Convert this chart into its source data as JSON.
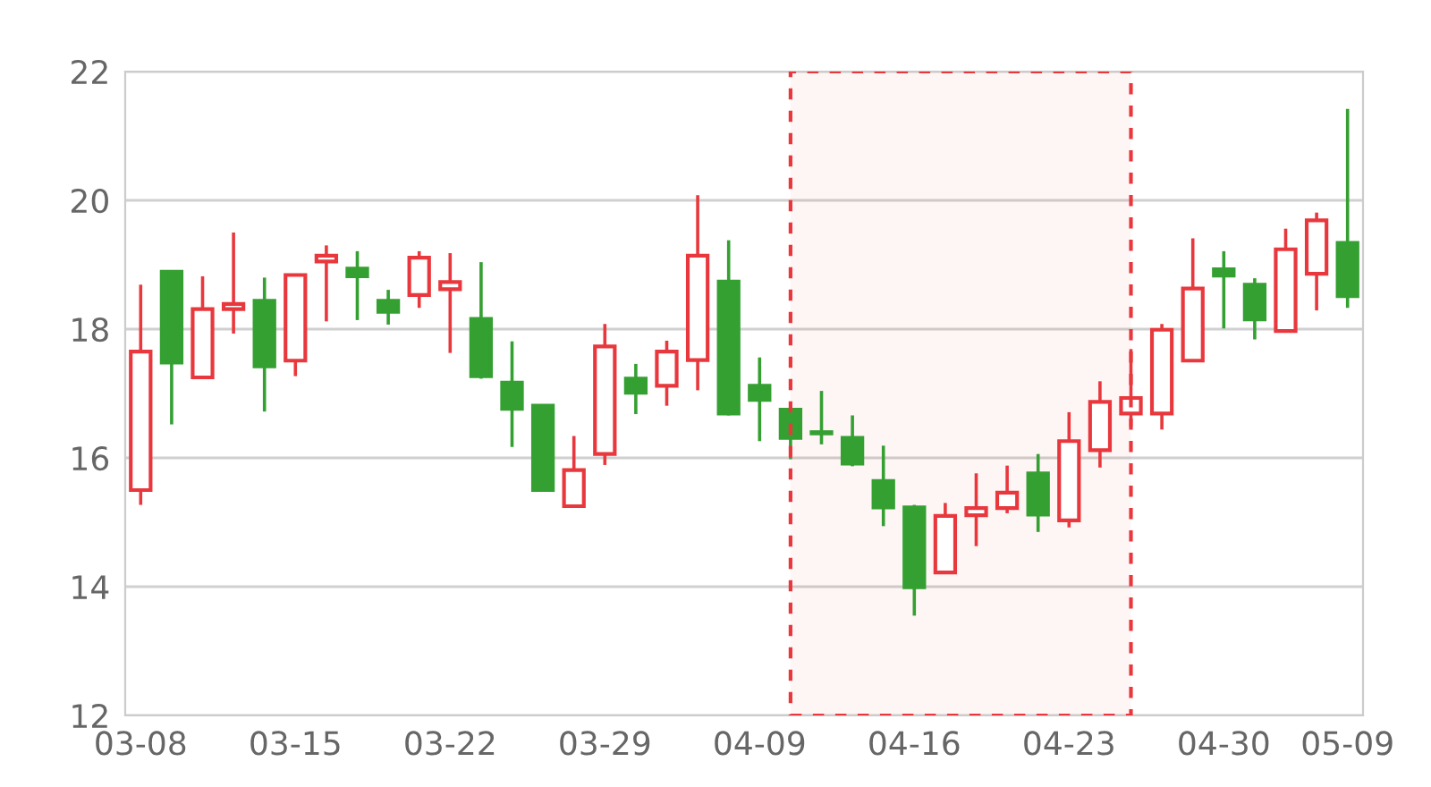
{
  "chart_data": {
    "type": "candlestick",
    "categories": [
      "03-08",
      null,
      null,
      null,
      null,
      "03-15",
      null,
      null,
      null,
      null,
      "03-22",
      null,
      null,
      null,
      null,
      "03-29",
      null,
      null,
      null,
      null,
      "04-09",
      null,
      null,
      null,
      null,
      "04-16",
      null,
      null,
      null,
      null,
      "04-23",
      null,
      null,
      null,
      null,
      "04-30",
      null,
      null,
      null,
      "05-09"
    ],
    "ohlc": [
      [
        15.5,
        18.69,
        15.27,
        17.65
      ],
      [
        18.89,
        18.89,
        16.52,
        17.48
      ],
      [
        17.25,
        18.82,
        17.25,
        18.31
      ],
      [
        18.31,
        19.5,
        17.93,
        18.39
      ],
      [
        18.44,
        18.8,
        16.72,
        17.42
      ],
      [
        17.51,
        18.84,
        17.27,
        18.84
      ],
      [
        19.05,
        19.3,
        18.12,
        19.14
      ],
      [
        18.94,
        19.21,
        18.14,
        18.82
      ],
      [
        18.44,
        18.61,
        18.07,
        18.27
      ],
      [
        18.53,
        19.21,
        18.33,
        19.11
      ],
      [
        18.62,
        19.18,
        17.63,
        18.73
      ],
      [
        18.16,
        19.04,
        17.23,
        17.27
      ],
      [
        17.17,
        17.81,
        16.17,
        16.76
      ],
      [
        16.81,
        16.81,
        15.5,
        15.5
      ],
      [
        15.25,
        16.34,
        15.25,
        15.81
      ],
      [
        16.06,
        18.08,
        15.89,
        17.73
      ],
      [
        17.23,
        17.46,
        16.68,
        17.01
      ],
      [
        17.12,
        17.82,
        16.81,
        17.65
      ],
      [
        17.52,
        20.08,
        17.05,
        19.14
      ],
      [
        18.74,
        19.38,
        16.66,
        16.69
      ],
      [
        17.12,
        17.56,
        16.26,
        16.9
      ],
      [
        16.75,
        16.8,
        15.98,
        16.31
      ],
      [
        16.4,
        17.04,
        16.21,
        16.38
      ],
      [
        16.31,
        16.66,
        15.87,
        15.91
      ],
      [
        15.64,
        16.19,
        14.94,
        15.23
      ],
      [
        15.23,
        15.27,
        13.55,
        13.99
      ],
      [
        14.22,
        15.3,
        14.22,
        15.1
      ],
      [
        15.11,
        15.76,
        14.63,
        15.22
      ],
      [
        15.22,
        15.88,
        15.14,
        15.46
      ],
      [
        15.76,
        16.06,
        14.85,
        15.12
      ],
      [
        15.03,
        16.71,
        14.92,
        16.26
      ],
      [
        16.12,
        17.19,
        15.85,
        16.87
      ],
      [
        16.69,
        17.69,
        16.49,
        16.93
      ],
      [
        16.69,
        18.08,
        16.44,
        17.99
      ],
      [
        17.51,
        19.41,
        17.49,
        18.63
      ],
      [
        18.93,
        19.21,
        18.01,
        18.83
      ],
      [
        18.69,
        18.79,
        17.84,
        18.15
      ],
      [
        17.97,
        19.56,
        17.97,
        19.24
      ],
      [
        18.86,
        19.81,
        18.29,
        19.69
      ],
      [
        19.34,
        21.42,
        18.33,
        18.51
      ]
    ],
    "colors": [
      "#e8383d",
      "#35a032",
      "#e8383d",
      "#e8383d",
      "#35a032",
      "#e8383d",
      "#e8383d",
      "#35a032",
      "#35a032",
      "#e8383d",
      "#e8383d",
      "#35a032",
      "#35a032",
      "#35a032",
      "#e8383d",
      "#e8383d",
      "#35a032",
      "#e8383d",
      "#e8383d",
      "#35a032",
      "#35a032",
      "#35a032",
      "#35a032",
      "#35a032",
      "#35a032",
      "#35a032",
      "#e8383d",
      "#e8383d",
      "#e8383d",
      "#35a032",
      "#e8383d",
      "#e8383d",
      "#e8383d",
      "#e8383d",
      "#e8383d",
      "#35a032",
      "#35a032",
      "#e8383d",
      "#e8383d",
      "#35a032"
    ],
    "ylim": [
      12,
      22
    ],
    "yticks": [
      12,
      14,
      16,
      18,
      20,
      22
    ],
    "grid": "y"
  }
}
